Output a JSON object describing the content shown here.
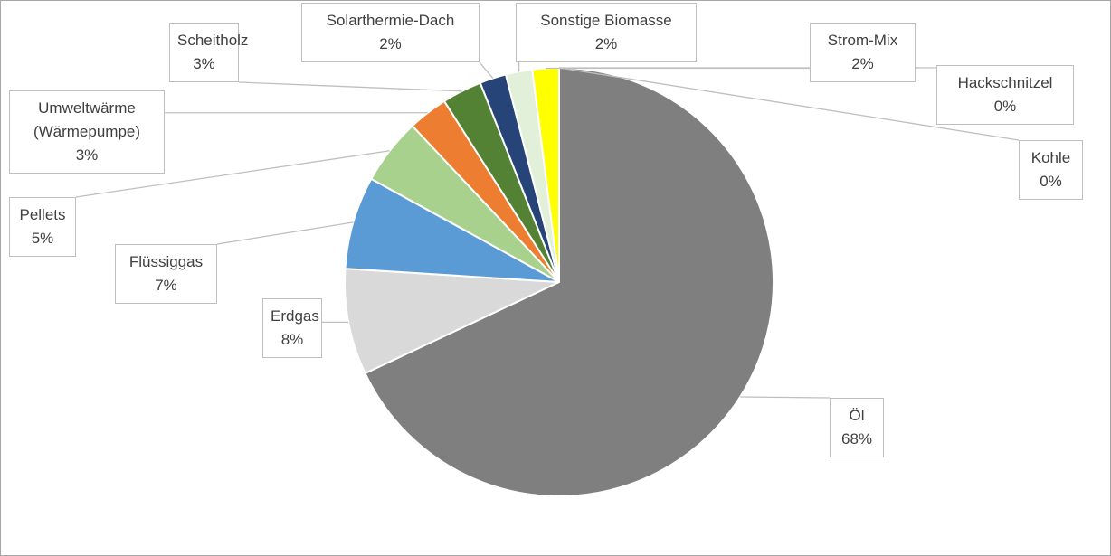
{
  "chart_data": {
    "type": "pie",
    "categories": [
      "Öl",
      "Erdgas",
      "Flüssiggas",
      "Pellets",
      "Umweltwärme (Wärmepumpe)",
      "Scheitholz",
      "Solarthermie-Dach",
      "Sonstige Biomasse",
      "Strom-Mix",
      "Hackschnitzel",
      "Kohle"
    ],
    "values": [
      68,
      8,
      7,
      5,
      3,
      3,
      2,
      2,
      2,
      0,
      0
    ],
    "value_labels": [
      "68%",
      "8%",
      "7%",
      "5%",
      "3%",
      "3%",
      "2%",
      "2%",
      "2%",
      "0%",
      "0%"
    ],
    "colors": [
      "#7f7f7f",
      "#d9d9d9",
      "#5b9bd5",
      "#a9d18e",
      "#ed7d31",
      "#548235",
      "#264478",
      "#e2efd9",
      "#ffff00",
      "#997300",
      "#636363"
    ]
  }
}
